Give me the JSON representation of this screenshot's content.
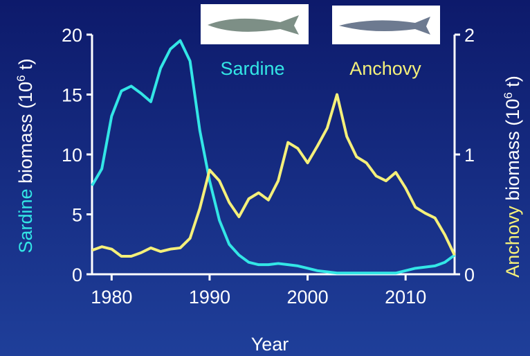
{
  "chart_data": {
    "type": "line",
    "x_label": "Year",
    "y_label": {
      "highlight": "Sardine",
      "rest": " biomass (10",
      "sup": "6",
      "end": " t)"
    },
    "y2_label": {
      "highlight": "Anchovy",
      "rest": " biomass (10",
      "sup": "6",
      "end": " t)"
    },
    "x": [
      1978,
      1979,
      1980,
      1981,
      1982,
      1983,
      1984,
      1985,
      1986,
      1987,
      1988,
      1989,
      1990,
      1991,
      1992,
      1993,
      1994,
      1995,
      1996,
      1997,
      1998,
      1999,
      2000,
      2001,
      2002,
      2003,
      2004,
      2005,
      2006,
      2007,
      2008,
      2009,
      2010,
      2011,
      2012,
      2013,
      2014,
      2015
    ],
    "xlim": [
      1978,
      2015
    ],
    "xticks": [
      1980,
      1990,
      2000,
      2010
    ],
    "ylim": [
      0,
      20
    ],
    "yticks": [
      0,
      5,
      10,
      15,
      20
    ],
    "y2lim": [
      0,
      2
    ],
    "y2ticks": [
      0,
      1,
      2
    ],
    "series": [
      {
        "name": "Sardine",
        "color": "#33e6e6",
        "values": [
          7.4,
          8.8,
          13.2,
          15.3,
          15.7,
          15.1,
          14.4,
          17.2,
          18.8,
          19.5,
          17.8,
          12,
          7.8,
          4.5,
          2.5,
          1.6,
          1.0,
          0.8,
          0.8,
          0.9,
          0.8,
          0.7,
          0.5,
          0.3,
          0.2,
          0.1,
          0.1,
          0.1,
          0.1,
          0.1,
          0.1,
          0.1,
          0.3,
          0.5,
          0.6,
          0.7,
          1.0,
          1.6
        ]
      },
      {
        "name": "Anchovy",
        "color": "#f5f07a",
        "axis": "y2",
        "values": [
          0.2,
          0.23,
          0.21,
          0.15,
          0.15,
          0.18,
          0.22,
          0.19,
          0.21,
          0.22,
          0.3,
          0.55,
          0.87,
          0.78,
          0.6,
          0.48,
          0.63,
          0.68,
          0.62,
          0.78,
          1.1,
          1.05,
          0.93,
          1.07,
          1.22,
          1.5,
          1.15,
          0.98,
          0.93,
          0.82,
          0.78,
          0.85,
          0.72,
          0.56,
          0.51,
          0.47,
          0.33,
          0.16
        ]
      }
    ]
  }
}
